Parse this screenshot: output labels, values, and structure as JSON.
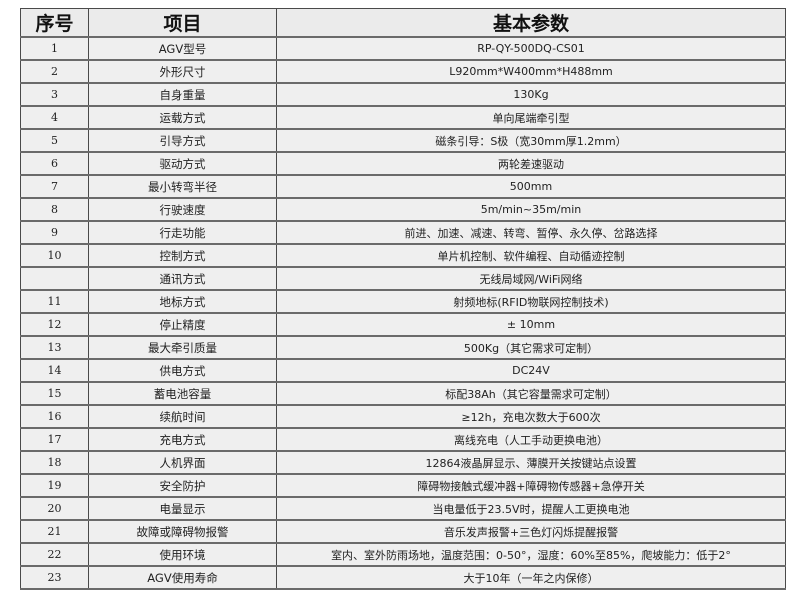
{
  "table": {
    "headers": [
      "序号",
      "项目",
      "基本参数"
    ],
    "rows": [
      {
        "no": "1",
        "item": "AGV型号",
        "value": "RP-QY-500DQ-CS01"
      },
      {
        "no": "2",
        "item": "外形尺寸",
        "value": "L920mm*W400mm*H488mm"
      },
      {
        "no": "3",
        "item": "自身重量",
        "value": "130Kg"
      },
      {
        "no": "4",
        "item": "运载方式",
        "value": "单向尾端牵引型"
      },
      {
        "no": "5",
        "item": "引导方式",
        "value": "磁条引导：S极（宽30mm厚1.2mm）"
      },
      {
        "no": "6",
        "item": "驱动方式",
        "value": "两轮差速驱动"
      },
      {
        "no": "7",
        "item": "最小转弯半径",
        "value": "500mm"
      },
      {
        "no": "8",
        "item": "行驶速度",
        "value": "5m/min~35m/min"
      },
      {
        "no": "9",
        "item": "行走功能",
        "value": "前进、加速、减速、转弯、暂停、永久停、岔路选择"
      },
      {
        "no": "10",
        "item": "控制方式",
        "value": "单片机控制、软件编程、自动循迹控制"
      },
      {
        "no": "",
        "item": "通讯方式",
        "value": "无线局域网/WiFi网络"
      },
      {
        "no": "11",
        "item": "地标方式",
        "value": "射频地标(RFID物联网控制技术)"
      },
      {
        "no": "12",
        "item": "停止精度",
        "value": "± 10mm"
      },
      {
        "no": "13",
        "item": "最大牵引质量",
        "value": "500Kg（其它需求可定制）"
      },
      {
        "no": "14",
        "item": "供电方式",
        "value": "DC24V"
      },
      {
        "no": "15",
        "item": "蓄电池容量",
        "value": "标配38Ah（其它容量需求可定制）"
      },
      {
        "no": "16",
        "item": "续航时间",
        "value": "≥12h，充电次数大于600次"
      },
      {
        "no": "17",
        "item": "充电方式",
        "value": "离线充电（人工手动更换电池）"
      },
      {
        "no": "18",
        "item": "人机界面",
        "value": "12864液晶屏显示、薄膜开关按键站点设置"
      },
      {
        "no": "19",
        "item": "安全防护",
        "value": "障碍物接触式缓冲器+障碍物传感器+急停开关"
      },
      {
        "no": "20",
        "item": "电量显示",
        "value": "当电量低于23.5V时，提醒人工更换电池"
      },
      {
        "no": "21",
        "item": "故障或障碍物报警",
        "value": "音乐发声报警+三色灯闪烁提醒报警"
      },
      {
        "no": "22",
        "item": "使用环境",
        "value": "室内、室外防雨场地，温度范围：0-50°，湿度：60%至85%，爬坡能力：低于2°"
      },
      {
        "no": "23",
        "item": "AGV使用寿命",
        "value": "大于10年（一年之内保修）"
      }
    ]
  }
}
